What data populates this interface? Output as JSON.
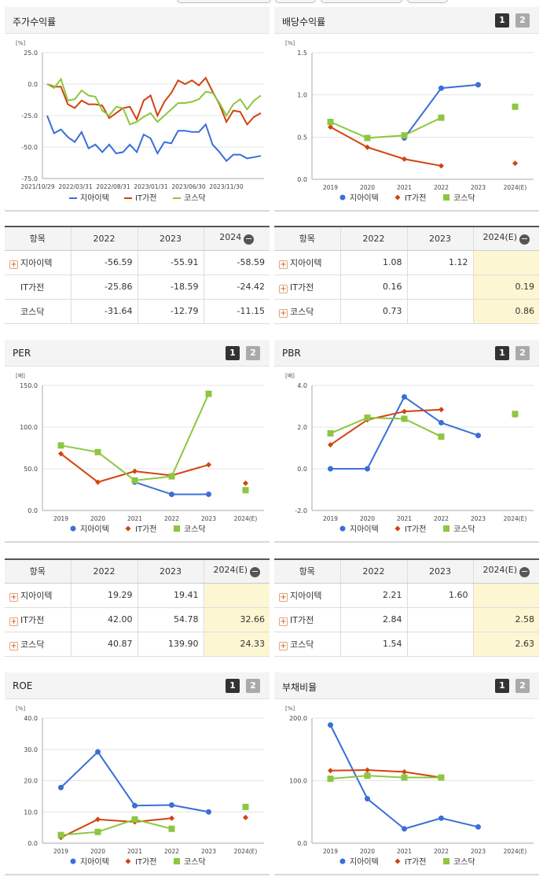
{
  "panels": {
    "stock": {
      "title": "주가수익률",
      "unit": "[%]"
    },
    "div": {
      "title": "배당수익률",
      "unit": "[%]"
    },
    "per": {
      "title": "PER",
      "unit": "[배]"
    },
    "pbr": {
      "title": "PBR",
      "unit": "[배]"
    },
    "roe": {
      "title": "ROE",
      "unit": "[%]"
    },
    "debt": {
      "title": "부채비율",
      "unit": "[%]"
    }
  },
  "pager": {
    "p1": "1",
    "p2": "2"
  },
  "colors": {
    "jia": "#3a6fd8",
    "it": "#d2430f",
    "kosdaq": "#8dc63f"
  },
  "chart_data": [
    {
      "id": "stock",
      "type": "line",
      "title": "주가수익률",
      "ylabel": "[%]",
      "ylim": [
        -75,
        25
      ],
      "yticks": [
        "25.0",
        "0.0",
        "-25.0",
        "-50.0",
        "-75.0"
      ],
      "xtick_labels": [
        "2021/10/29",
        "2022/03/31",
        "2022/08/31",
        "2023/01/31",
        "2023/06/30",
        "2023/11/30"
      ],
      "legend": [
        "지아이텍",
        "IT가전",
        "코스닥"
      ],
      "series": [
        {
          "name": "지아이텍",
          "values": [
            -25,
            -39,
            -36,
            -42,
            -46,
            -38,
            -51,
            -48,
            -54,
            -48,
            -55,
            -54,
            -48,
            -54,
            -40,
            -43,
            -55,
            -46,
            -47,
            -37,
            -37,
            -38,
            -38,
            -32,
            -48,
            -54,
            -61,
            -56,
            -56,
            -59,
            -58,
            -57
          ]
        },
        {
          "name": "IT가전",
          "values": [
            0,
            -2,
            -2,
            -16,
            -19,
            -13,
            -16,
            -16,
            -17,
            -27,
            -23,
            -19,
            -18,
            -28,
            -13,
            -9,
            -25,
            -14,
            -7,
            3,
            0,
            3,
            -1,
            5,
            -6,
            -16,
            -30,
            -21,
            -22,
            -32,
            -26,
            -23
          ]
        },
        {
          "name": "코스닥",
          "values": [
            0,
            -3,
            4,
            -13,
            -12,
            -5,
            -9,
            -10,
            -21,
            -25,
            -18,
            -19,
            -32,
            -30,
            -26,
            -23,
            -30,
            -25,
            -20,
            -15,
            -15,
            -14,
            -12,
            -6,
            -7,
            -15,
            -25,
            -16,
            -12,
            -20,
            -13,
            -9
          ]
        }
      ]
    },
    {
      "id": "div",
      "type": "line",
      "title": "배당수익률",
      "ylabel": "[%]",
      "ylim": [
        0,
        1.5
      ],
      "yticks": [
        "1.5",
        "1.0",
        "0.5",
        "0.0"
      ],
      "categories": [
        "2019",
        "2020",
        "2021",
        "2022",
        "2023",
        "2024(E)"
      ],
      "legend": [
        "지아이텍",
        "IT가전",
        "코스닥"
      ],
      "series": [
        {
          "name": "지아이텍",
          "values": [
            null,
            null,
            0.49,
            1.08,
            1.12,
            null
          ]
        },
        {
          "name": "IT가전",
          "values": [
            0.62,
            0.38,
            0.24,
            0.16,
            null,
            0.19
          ]
        },
        {
          "name": "코스닥",
          "values": [
            0.68,
            0.49,
            0.52,
            0.73,
            null,
            0.86
          ]
        }
      ]
    },
    {
      "id": "per",
      "type": "line",
      "title": "PER",
      "ylabel": "[배]",
      "ylim": [
        0,
        150
      ],
      "yticks": [
        "150.0",
        "100.0",
        "50.0",
        "0.0"
      ],
      "categories": [
        "2019",
        "2020",
        "2021",
        "2022",
        "2023",
        "2024(E)"
      ],
      "legend": [
        "지아이텍",
        "IT가전",
        "코스닥"
      ],
      "series": [
        {
          "name": "지아이텍",
          "values": [
            null,
            null,
            34,
            19.29,
            19.41,
            null
          ]
        },
        {
          "name": "IT가전",
          "values": [
            68,
            34,
            47,
            42.0,
            54.78,
            32.66
          ]
        },
        {
          "name": "코스닥",
          "values": [
            78,
            70,
            36,
            40.87,
            139.9,
            24.33
          ]
        }
      ]
    },
    {
      "id": "pbr",
      "type": "line",
      "title": "PBR",
      "ylabel": "[배]",
      "ylim": [
        -2,
        4
      ],
      "yticks": [
        "4.0",
        "2.0",
        "0.0",
        "-2.0"
      ],
      "categories": [
        "2019",
        "2020",
        "2021",
        "2022",
        "2023",
        "2024(E)"
      ],
      "legend": [
        "지아이텍",
        "IT가전",
        "코스닥"
      ],
      "series": [
        {
          "name": "지아이텍",
          "values": [
            0,
            0,
            3.45,
            2.21,
            1.6,
            null
          ]
        },
        {
          "name": "IT가전",
          "values": [
            1.15,
            2.35,
            2.75,
            2.84,
            null,
            2.58
          ]
        },
        {
          "name": "코스닥",
          "values": [
            1.7,
            2.45,
            2.4,
            1.54,
            null,
            2.63
          ]
        }
      ]
    },
    {
      "id": "roe",
      "type": "line",
      "title": "ROE",
      "ylabel": "[%]",
      "ylim": [
        0,
        40
      ],
      "yticks": [
        "40.0",
        "30.0",
        "20.0",
        "10.0",
        "0.0"
      ],
      "categories": [
        "2019",
        "2020",
        "2021",
        "2022",
        "2023",
        "2024(E)"
      ],
      "legend": [
        "지아이텍",
        "IT가전",
        "코스닥"
      ],
      "series": [
        {
          "name": "지아이텍",
          "values": [
            17.8,
            29.2,
            12,
            12.2,
            10,
            null
          ]
        },
        {
          "name": "IT가전",
          "values": [
            1.8,
            7.6,
            6.8,
            8,
            null,
            8.2
          ]
        },
        {
          "name": "코스닥",
          "values": [
            2.6,
            3.6,
            7.6,
            4.6,
            null,
            11.6
          ]
        }
      ]
    },
    {
      "id": "debt",
      "type": "line",
      "title": "부채비율",
      "ylabel": "[%]",
      "ylim": [
        0,
        200
      ],
      "yticks": [
        "200.0",
        "100.0",
        "0.0"
      ],
      "categories": [
        "2019",
        "2020",
        "2021",
        "2022",
        "2023",
        "2024(E)"
      ],
      "legend": [
        "지아이텍",
        "IT가전",
        "코스닥"
      ],
      "series": [
        {
          "name": "지아이텍",
          "values": [
            189,
            71,
            23,
            40,
            26,
            null
          ]
        },
        {
          "name": "IT가전",
          "values": [
            116,
            117,
            114,
            105,
            null,
            null
          ]
        },
        {
          "name": "코스닥",
          "values": [
            103,
            108,
            105,
            105,
            null,
            null
          ]
        }
      ]
    }
  ],
  "tables": {
    "stock": {
      "header": [
        "항목",
        "2022",
        "2023",
        "2024"
      ],
      "rows": [
        {
          "name": "지아이텍",
          "plus": true,
          "v": [
            "-56.59",
            "-55.91",
            "-58.59"
          ]
        },
        {
          "name": "IT가전",
          "plus": false,
          "v": [
            "-25.86",
            "-18.59",
            "-24.42"
          ]
        },
        {
          "name": "코스닥",
          "plus": false,
          "v": [
            "-31.64",
            "-12.79",
            "-11.15"
          ]
        }
      ]
    },
    "div": {
      "header": [
        "항목",
        "2022",
        "2023",
        "2024(E)"
      ],
      "rows": [
        {
          "name": "지아이텍",
          "plus": true,
          "v": [
            "1.08",
            "1.12",
            ""
          ]
        },
        {
          "name": "IT가전",
          "plus": true,
          "v": [
            "0.16",
            "",
            "0.19"
          ]
        },
        {
          "name": "코스닥",
          "plus": true,
          "v": [
            "0.73",
            "",
            "0.86"
          ]
        }
      ]
    },
    "per": {
      "header": [
        "항목",
        "2022",
        "2023",
        "2024(E)"
      ],
      "rows": [
        {
          "name": "지아이텍",
          "plus": true,
          "v": [
            "19.29",
            "19.41",
            ""
          ]
        },
        {
          "name": "IT가전",
          "plus": true,
          "v": [
            "42.00",
            "54.78",
            "32.66"
          ]
        },
        {
          "name": "코스닥",
          "plus": true,
          "v": [
            "40.87",
            "139.90",
            "24.33"
          ]
        }
      ]
    },
    "pbr": {
      "header": [
        "항목",
        "2022",
        "2023",
        "2024(E)"
      ],
      "rows": [
        {
          "name": "지아이텍",
          "plus": true,
          "v": [
            "2.21",
            "1.60",
            ""
          ]
        },
        {
          "name": "IT가전",
          "plus": true,
          "v": [
            "2.84",
            "",
            "2.58"
          ]
        },
        {
          "name": "코스닥",
          "plus": true,
          "v": [
            "1.54",
            "",
            "2.63"
          ]
        }
      ]
    }
  }
}
